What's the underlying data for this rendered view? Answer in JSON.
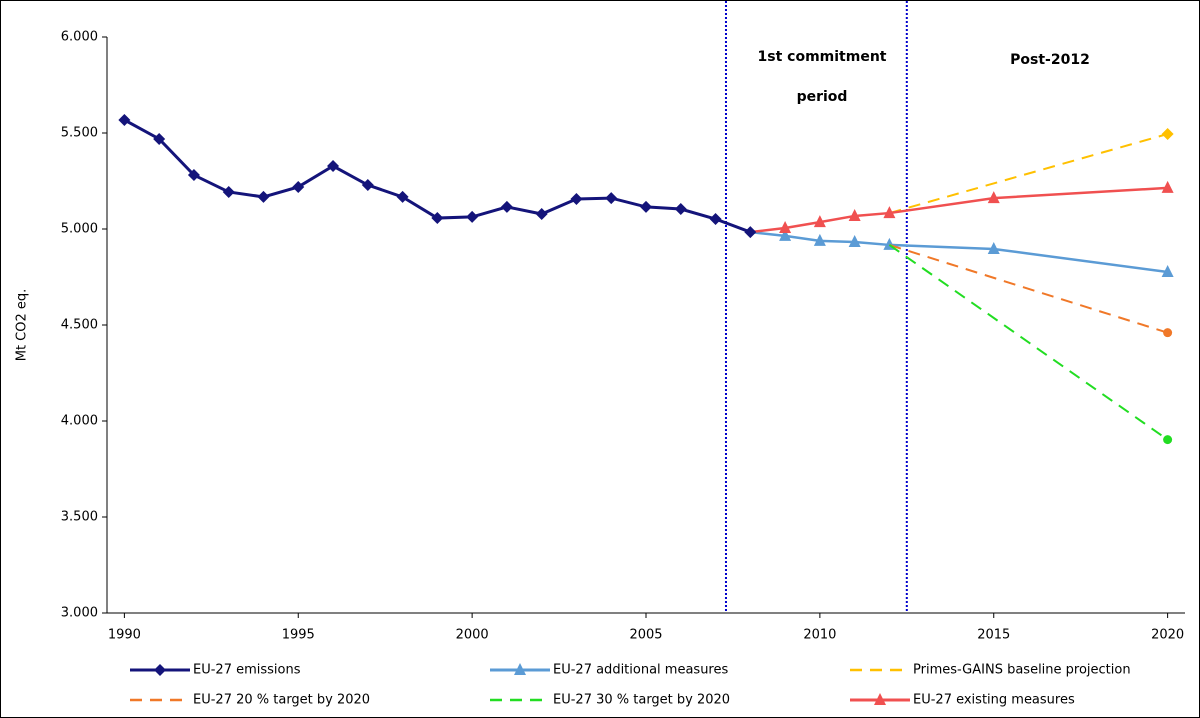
{
  "chart_data": {
    "type": "line",
    "y_label": "Mt CO2 eq.",
    "annotations": [
      "1st commitment",
      "period",
      "Post-2012"
    ],
    "vlines": [
      2007.3,
      2012.5
    ],
    "vline_color": "#0000cc",
    "xlim": [
      1989.5,
      2020.5
    ],
    "xticks": [
      1990,
      1995,
      2000,
      2005,
      2010,
      2015,
      2020
    ],
    "ylim": [
      3000,
      6000
    ],
    "yticks": [
      {
        "value": 3000,
        "label": "3.000"
      },
      {
        "value": 3500,
        "label": "3.500"
      },
      {
        "value": 4000,
        "label": "4.000"
      },
      {
        "value": 4500,
        "label": "4.500"
      },
      {
        "value": 5000,
        "label": "5.000"
      },
      {
        "value": 5500,
        "label": "5.500"
      },
      {
        "value": 6000,
        "label": "6.000"
      }
    ],
    "grid": false,
    "legend": "bottom",
    "series": [
      {
        "name": "EU-27 additional measures",
        "color": "#5b9bd5",
        "dashed": false,
        "marker": "triangle",
        "first_marker": false,
        "x": [
          2008,
          2009,
          2010,
          2011,
          2012,
          2015,
          2020
        ],
        "values": [
          4984,
          4964,
          4938,
          4932,
          4917,
          4896,
          4776
        ]
      },
      {
        "name": "Primes-GAINS baseline projection",
        "color": "#ffc000",
        "dashed": true,
        "marker": "diamond",
        "first_marker": false,
        "x": [
          2012,
          2020
        ],
        "values": [
          5083,
          5495
        ]
      },
      {
        "name": "EU-27 20 % target by 2020",
        "color": "#f07828",
        "dashed": true,
        "marker": "circle",
        "first_marker": false,
        "x": [
          2012,
          2020
        ],
        "values": [
          4917,
          4460
        ]
      },
      {
        "name": "EU-27 30 % target by 2020",
        "color": "#22dd22",
        "dashed": true,
        "marker": "circle",
        "first_marker": false,
        "x": [
          2012,
          2020
        ],
        "values": [
          4917,
          3903
        ]
      },
      {
        "name": "EU-27 existing measures",
        "color": "#f05050",
        "dashed": false,
        "marker": "triangle",
        "first_marker": false,
        "x": [
          2008,
          2009,
          2010,
          2011,
          2012,
          2015,
          2020
        ],
        "values": [
          4984,
          5005,
          5036,
          5068,
          5083,
          5161,
          5214
        ]
      },
      {
        "name": "EU-27 emissions",
        "color": "#14147a",
        "dashed": false,
        "marker": "diamond",
        "first_marker": true,
        "x": [
          1990,
          1991,
          1992,
          1993,
          1994,
          1995,
          1996,
          1997,
          1998,
          1999,
          2000,
          2001,
          2002,
          2003,
          2004,
          2005,
          2006,
          2007,
          2008
        ],
        "values": [
          5568,
          5469,
          5281,
          5193,
          5167,
          5219,
          5328,
          5229,
          5167,
          5057,
          5063,
          5115,
          5078,
          5156,
          5161,
          5115,
          5104,
          5052,
          4984
        ]
      }
    ]
  }
}
